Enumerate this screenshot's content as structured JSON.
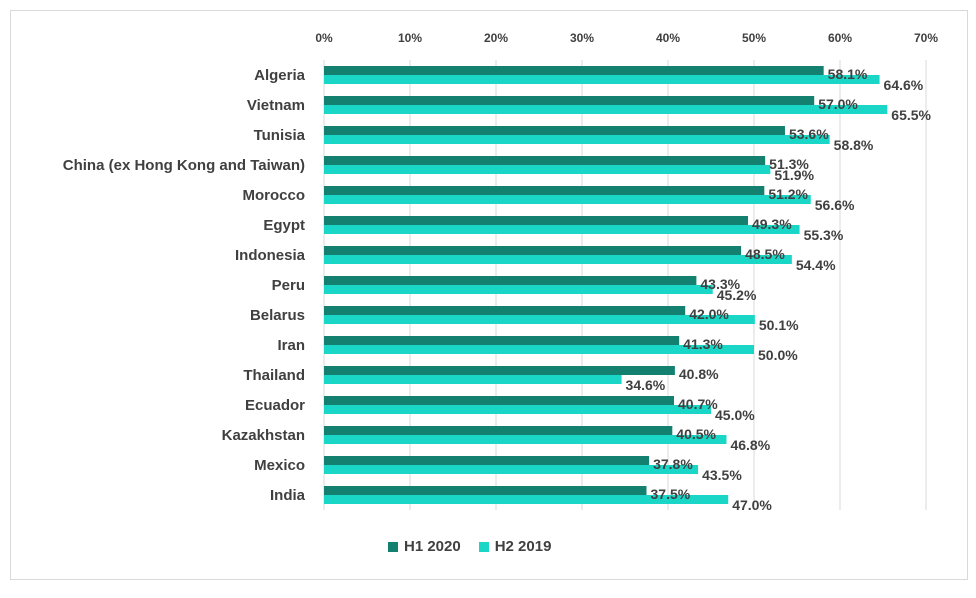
{
  "colors": {
    "h1_2020": "#138070",
    "h2_2019": "#19d6c6",
    "grid": "#d9d9d9",
    "text": "#404040"
  },
  "chart_data": {
    "type": "bar",
    "orientation": "horizontal",
    "title": "",
    "xlabel": "",
    "ylabel": "",
    "xlim": [
      0,
      70
    ],
    "xticks": [
      "0%",
      "10%",
      "20%",
      "30%",
      "40%",
      "50%",
      "60%",
      "70%"
    ],
    "legend_position": "bottom",
    "categories": [
      "Algeria",
      "Vietnam",
      "Tunisia",
      "China (ex Hong Kong and Taiwan)",
      "Morocco",
      "Egypt",
      "Indonesia",
      "Peru",
      "Belarus",
      "Iran",
      "Thailand",
      "Ecuador",
      "Kazakhstan",
      "Mexico",
      "India"
    ],
    "series": [
      {
        "name": "H1 2020",
        "values": [
          58.1,
          57.0,
          53.6,
          51.3,
          51.2,
          49.3,
          48.5,
          43.3,
          42.0,
          41.3,
          40.8,
          40.7,
          40.5,
          37.8,
          37.5
        ],
        "labels": [
          "58.1%",
          "57.0%",
          "53.6%",
          "51.3%",
          "51.2%",
          "49.3%",
          "48.5%",
          "43.3%",
          "42.0%",
          "41.3%",
          "40.8%",
          "40.7%",
          "40.5%",
          "37.8%",
          "37.5%"
        ]
      },
      {
        "name": "H2 2019",
        "values": [
          64.6,
          65.5,
          58.8,
          51.9,
          56.6,
          55.3,
          54.4,
          45.2,
          50.1,
          50.0,
          34.6,
          45.0,
          46.8,
          43.5,
          47.0
        ],
        "labels": [
          "64.6%",
          "65.5%",
          "58.8%",
          "51.9%",
          "56.6%",
          "55.3%",
          "54.4%",
          "45.2%",
          "50.1%",
          "50.0%",
          "34.6%",
          "45.0%",
          "46.8%",
          "43.5%",
          "47.0%"
        ]
      }
    ]
  }
}
